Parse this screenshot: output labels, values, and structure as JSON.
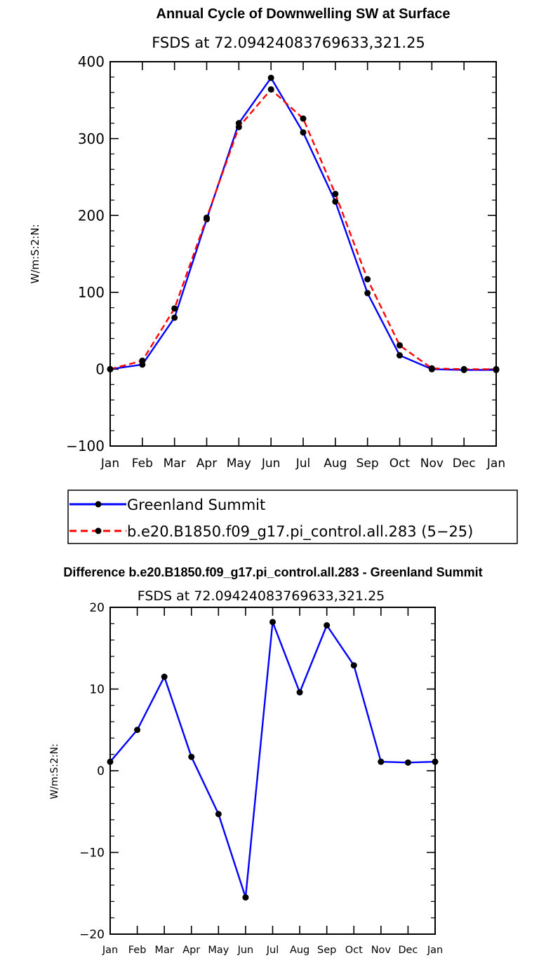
{
  "chart_data": [
    {
      "type": "line",
      "title": "Annual Cycle of Downwelling SW at Surface",
      "subtitle": "FSDS at 72.09424083769633,321.25",
      "ylabel": "W/m:S:2:N:",
      "xlabel": "",
      "categories": [
        "Jan",
        "Feb",
        "Mar",
        "Apr",
        "May",
        "Jun",
        "Jul",
        "Aug",
        "Sep",
        "Oct",
        "Nov",
        "Dec",
        "Jan"
      ],
      "ylim": [
        -100,
        400
      ],
      "yticks": [
        -100,
        0,
        100,
        200,
        300,
        400
      ],
      "y_minor_step": 20,
      "grid": false,
      "legend_position": "bottom",
      "series": [
        {
          "name": "Greenland Summit",
          "color": "#0000ff",
          "dash": "solid",
          "values": [
            0,
            6,
            67,
            195,
            320,
            379,
            308,
            218,
            99,
            18,
            0,
            -1,
            -1
          ]
        },
        {
          "name": "b.e20.B1850.f09_g17.pi_control.all.283 (5−25)",
          "color": "#ff0000",
          "dash": "dashed",
          "values": [
            0,
            11,
            79,
            197,
            315,
            364,
            326,
            228,
            117,
            31,
            1,
            0,
            0
          ]
        }
      ]
    },
    {
      "type": "line",
      "title": "Difference b.e20.B1850.f09_g17.pi_control.all.283 - Greenland Summit",
      "subtitle": "FSDS at 72.09424083769633,321.25",
      "ylabel": "W/m:S:2:N:",
      "xlabel": "",
      "categories": [
        "Jan",
        "Feb",
        "Mar",
        "Apr",
        "May",
        "Jun",
        "Jul",
        "Aug",
        "Sep",
        "Oct",
        "Nov",
        "Dec",
        "Jan"
      ],
      "ylim": [
        -20,
        20
      ],
      "yticks": [
        -20,
        -10,
        0,
        10,
        20
      ],
      "y_minor_step": 2,
      "grid": false,
      "series": [
        {
          "name": "",
          "color": "#0000ff",
          "dash": "solid",
          "values": [
            1.1,
            5.0,
            11.5,
            1.7,
            -5.3,
            -15.5,
            18.2,
            9.6,
            17.8,
            12.9,
            1.1,
            1.0,
            1.1
          ]
        }
      ]
    }
  ]
}
